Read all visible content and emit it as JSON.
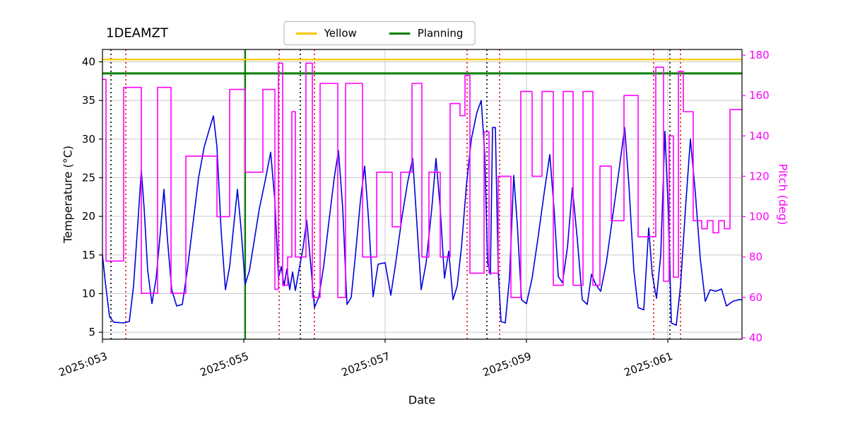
{
  "title": "1DEAMZT",
  "legend": {
    "items": [
      {
        "label": "Yellow",
        "color": "#ffc400"
      },
      {
        "label": "Planning",
        "color": "#008000"
      }
    ]
  },
  "axes": {
    "x_label": "Date",
    "y_left_label": "Temperature (°C)",
    "y_right_label": "Pitch (deg)",
    "x_ticks": [
      "2025:053",
      "2025:055",
      "2025:057",
      "2025:059",
      "2025:061"
    ],
    "x_tick_values": [
      53,
      55,
      57,
      59,
      61
    ],
    "y_left_ticks": [
      5,
      10,
      15,
      20,
      25,
      30,
      35,
      40
    ],
    "y_right_ticks": [
      40,
      60,
      80,
      100,
      120,
      140,
      160,
      180
    ],
    "x_domain": [
      53.0,
      62.05
    ],
    "y_left_domain": [
      4.1,
      41.6
    ],
    "y_right_domain": [
      39.3,
      182.8
    ],
    "grid": true
  },
  "chart_data": {
    "type": "line",
    "series": [
      {
        "name": "temperature",
        "color": "#0000dd",
        "axis": "left",
        "step": false,
        "points": [
          [
            53.0,
            15.0
          ],
          [
            53.04,
            11.5
          ],
          [
            53.1,
            7.0
          ],
          [
            53.16,
            6.3
          ],
          [
            53.3,
            6.2
          ],
          [
            53.38,
            6.4
          ],
          [
            53.44,
            11.0
          ],
          [
            53.5,
            19.0
          ],
          [
            53.55,
            26.0
          ],
          [
            53.59,
            21.0
          ],
          [
            53.64,
            13.0
          ],
          [
            53.7,
            8.7
          ],
          [
            53.76,
            12.0
          ],
          [
            53.82,
            18.0
          ],
          [
            53.87,
            23.5
          ],
          [
            53.92,
            17.0
          ],
          [
            53.98,
            10.5
          ],
          [
            54.05,
            8.4
          ],
          [
            54.13,
            8.6
          ],
          [
            54.2,
            13.0
          ],
          [
            54.28,
            19.0
          ],
          [
            54.36,
            25.0
          ],
          [
            54.44,
            29.0
          ],
          [
            54.52,
            31.5
          ],
          [
            54.57,
            33.0
          ],
          [
            54.62,
            29.0
          ],
          [
            54.68,
            18.0
          ],
          [
            54.74,
            10.5
          ],
          [
            54.8,
            13.5
          ],
          [
            54.86,
            19.0
          ],
          [
            54.91,
            23.5
          ],
          [
            54.96,
            18.5
          ],
          [
            55.02,
            11.2
          ],
          [
            55.08,
            13.0
          ],
          [
            55.15,
            17.0
          ],
          [
            55.22,
            21.0
          ],
          [
            55.3,
            24.5
          ],
          [
            55.38,
            28.3
          ],
          [
            55.44,
            22.0
          ],
          [
            55.49,
            12.0
          ],
          [
            55.53,
            13.5
          ],
          [
            55.57,
            11.0
          ],
          [
            55.61,
            13.2
          ],
          [
            55.65,
            10.5
          ],
          [
            55.69,
            12.8
          ],
          [
            55.73,
            10.4
          ],
          [
            55.78,
            13.0
          ],
          [
            55.84,
            16.0
          ],
          [
            55.89,
            19.5
          ],
          [
            55.94,
            14.5
          ],
          [
            56.0,
            8.2
          ],
          [
            56.06,
            9.5
          ],
          [
            56.13,
            13.5
          ],
          [
            56.2,
            19.0
          ],
          [
            56.28,
            25.0
          ],
          [
            56.34,
            28.5
          ],
          [
            56.4,
            21.0
          ],
          [
            56.46,
            8.6
          ],
          [
            56.52,
            9.5
          ],
          [
            56.58,
            15.0
          ],
          [
            56.65,
            22.0
          ],
          [
            56.71,
            26.5
          ],
          [
            56.77,
            19.0
          ],
          [
            56.83,
            9.6
          ],
          [
            56.9,
            13.8
          ],
          [
            57.0,
            14.0
          ],
          [
            57.08,
            9.8
          ],
          [
            57.15,
            14.0
          ],
          [
            57.24,
            20.0
          ],
          [
            57.32,
            24.5
          ],
          [
            57.39,
            27.5
          ],
          [
            57.45,
            19.0
          ],
          [
            57.51,
            10.5
          ],
          [
            57.58,
            14.0
          ],
          [
            57.66,
            21.0
          ],
          [
            57.72,
            27.5
          ],
          [
            57.78,
            21.0
          ],
          [
            57.84,
            12.0
          ],
          [
            57.9,
            15.5
          ],
          [
            57.96,
            9.2
          ],
          [
            58.02,
            11.0
          ],
          [
            58.08,
            16.0
          ],
          [
            58.15,
            24.0
          ],
          [
            58.22,
            30.0
          ],
          [
            58.3,
            33.5
          ],
          [
            58.36,
            35.0
          ],
          [
            58.41,
            28.0
          ],
          [
            58.45,
            14.0
          ],
          [
            58.49,
            12.5
          ],
          [
            58.52,
            31.5
          ],
          [
            58.56,
            31.5
          ],
          [
            58.6,
            13.0
          ],
          [
            58.64,
            6.4
          ],
          [
            58.7,
            6.2
          ],
          [
            58.76,
            12.0
          ],
          [
            58.82,
            25.3
          ],
          [
            58.87,
            19.0
          ],
          [
            58.93,
            9.2
          ],
          [
            59.0,
            8.7
          ],
          [
            59.08,
            12.0
          ],
          [
            59.16,
            17.0
          ],
          [
            59.25,
            23.0
          ],
          [
            59.33,
            28.0
          ],
          [
            59.39,
            21.0
          ],
          [
            59.45,
            12.2
          ],
          [
            59.51,
            11.4
          ],
          [
            59.58,
            16.0
          ],
          [
            59.65,
            23.7
          ],
          [
            59.72,
            17.0
          ],
          [
            59.79,
            9.2
          ],
          [
            59.86,
            8.6
          ],
          [
            59.92,
            12.5
          ],
          [
            59.98,
            11.2
          ],
          [
            60.05,
            10.3
          ],
          [
            60.13,
            14.0
          ],
          [
            60.22,
            20.0
          ],
          [
            60.31,
            26.0
          ],
          [
            60.39,
            31.5
          ],
          [
            60.45,
            24.0
          ],
          [
            60.52,
            13.0
          ],
          [
            60.58,
            8.2
          ],
          [
            60.66,
            7.9
          ],
          [
            60.73,
            18.5
          ],
          [
            60.78,
            12.5
          ],
          [
            60.84,
            9.4
          ],
          [
            60.9,
            15.0
          ],
          [
            60.96,
            31.0
          ],
          [
            61.01,
            20.0
          ],
          [
            61.05,
            6.2
          ],
          [
            61.12,
            5.9
          ],
          [
            61.18,
            11.0
          ],
          [
            61.25,
            21.0
          ],
          [
            61.32,
            30.0
          ],
          [
            61.39,
            23.0
          ],
          [
            61.46,
            14.5
          ],
          [
            61.53,
            9.0
          ],
          [
            61.6,
            10.5
          ],
          [
            61.68,
            10.3
          ],
          [
            61.76,
            10.6
          ],
          [
            61.83,
            8.4
          ],
          [
            61.92,
            9.0
          ],
          [
            62.0,
            9.2
          ],
          [
            62.05,
            9.2
          ]
        ]
      },
      {
        "name": "pitch",
        "color": "#ff00ff",
        "axis": "right",
        "step": true,
        "points": [
          [
            53.0,
            168
          ],
          [
            53.05,
            78
          ],
          [
            53.3,
            164
          ],
          [
            53.55,
            62
          ],
          [
            53.78,
            164
          ],
          [
            53.97,
            62
          ],
          [
            54.18,
            130
          ],
          [
            54.62,
            100
          ],
          [
            54.8,
            163
          ],
          [
            55.02,
            122
          ],
          [
            55.27,
            163
          ],
          [
            55.44,
            64
          ],
          [
            55.49,
            176
          ],
          [
            55.55,
            66
          ],
          [
            55.62,
            80
          ],
          [
            55.68,
            152
          ],
          [
            55.73,
            80
          ],
          [
            55.88,
            176
          ],
          [
            55.97,
            60
          ],
          [
            56.08,
            166
          ],
          [
            56.33,
            60
          ],
          [
            56.44,
            166
          ],
          [
            56.68,
            80
          ],
          [
            56.88,
            122
          ],
          [
            57.1,
            95
          ],
          [
            57.22,
            122
          ],
          [
            57.38,
            166
          ],
          [
            57.52,
            80
          ],
          [
            57.62,
            122
          ],
          [
            57.78,
            80
          ],
          [
            57.92,
            156
          ],
          [
            58.06,
            150
          ],
          [
            58.13,
            170
          ],
          [
            58.2,
            72
          ],
          [
            58.4,
            142
          ],
          [
            58.47,
            72
          ],
          [
            58.6,
            120
          ],
          [
            58.78,
            60
          ],
          [
            58.92,
            162
          ],
          [
            59.08,
            120
          ],
          [
            59.22,
            162
          ],
          [
            59.38,
            66
          ],
          [
            59.52,
            162
          ],
          [
            59.66,
            66
          ],
          [
            59.8,
            162
          ],
          [
            59.94,
            66
          ],
          [
            60.04,
            125
          ],
          [
            60.2,
            98
          ],
          [
            60.38,
            160
          ],
          [
            60.58,
            90
          ],
          [
            60.83,
            174
          ],
          [
            60.94,
            68
          ],
          [
            61.02,
            140
          ],
          [
            61.08,
            70
          ],
          [
            61.15,
            172
          ],
          [
            61.22,
            152
          ],
          [
            61.36,
            98
          ],
          [
            61.48,
            94
          ],
          [
            61.56,
            98
          ],
          [
            61.64,
            92
          ],
          [
            61.72,
            98
          ],
          [
            61.8,
            94
          ],
          [
            61.88,
            153
          ]
        ]
      }
    ],
    "horizontal_lines": [
      {
        "label": "Yellow",
        "y": 40.3,
        "axis": "left",
        "color": "#ffc400",
        "width": 2.2
      },
      {
        "label": "Planning",
        "y": 38.5,
        "axis": "left",
        "color": "#008000",
        "width": 3
      }
    ],
    "vertical_lines": [
      {
        "x": 53.12,
        "color": "#000000",
        "style": "dotted",
        "width": 1.6
      },
      {
        "x": 53.33,
        "color": "#dd0000",
        "style": "dotted",
        "width": 1.6
      },
      {
        "x": 55.02,
        "color": "#008000",
        "style": "solid",
        "width": 2.2
      },
      {
        "x": 55.5,
        "color": "#dd0000",
        "style": "dotted",
        "width": 1.6
      },
      {
        "x": 55.8,
        "color": "#000000",
        "style": "dotted",
        "width": 1.6
      },
      {
        "x": 56.0,
        "color": "#dd0000",
        "style": "dotted",
        "width": 1.6
      },
      {
        "x": 58.16,
        "color": "#dd0000",
        "style": "dotted",
        "width": 1.6
      },
      {
        "x": 58.44,
        "color": "#000000",
        "style": "dotted",
        "width": 1.6
      },
      {
        "x": 58.62,
        "color": "#dd0000",
        "style": "dotted",
        "width": 1.6
      },
      {
        "x": 60.8,
        "color": "#dd0000",
        "style": "dotted",
        "width": 1.6
      },
      {
        "x": 61.03,
        "color": "#000000",
        "style": "dotted",
        "width": 1.6
      },
      {
        "x": 61.18,
        "color": "#dd0000",
        "style": "dotted",
        "width": 1.6
      }
    ]
  }
}
